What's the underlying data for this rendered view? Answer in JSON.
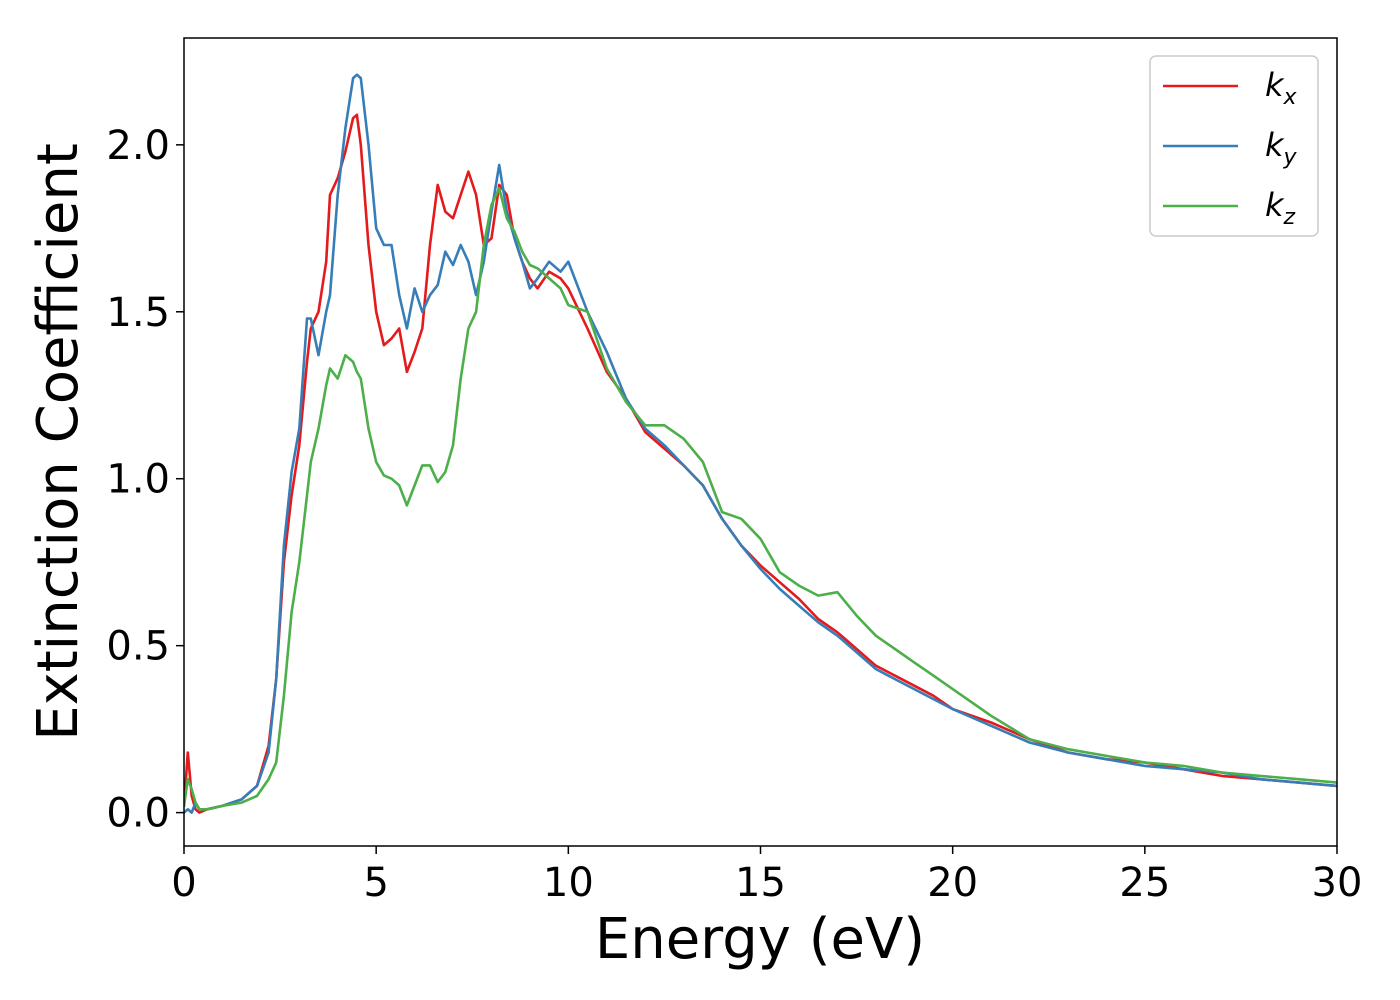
{
  "chart_data": {
    "type": "line",
    "title": "",
    "xlabel": "Energy (eV)",
    "ylabel": "Extinction Coefficient",
    "xlim": [
      0,
      30
    ],
    "ylim": [
      -0.1,
      2.32
    ],
    "xticks": [
      0,
      5,
      10,
      15,
      20,
      25,
      30
    ],
    "xtick_labels": [
      "0",
      "5",
      "10",
      "15",
      "20",
      "25",
      "30"
    ],
    "yticks": [
      0.0,
      0.5,
      1.0,
      1.5,
      2.0
    ],
    "ytick_labels": [
      "0.0",
      "0.5",
      "1.0",
      "1.5",
      "2.0"
    ],
    "grid": false,
    "legend_position": "top-right",
    "series": [
      {
        "name": "k",
        "subscript": "x",
        "color": "#e41a1c",
        "x": [
          0,
          0.1,
          0.2,
          0.3,
          0.4,
          0.6,
          1.0,
          1.5,
          1.9,
          2.2,
          2.4,
          2.6,
          2.8,
          3.0,
          3.2,
          3.3,
          3.5,
          3.7,
          3.8,
          4.0,
          4.2,
          4.4,
          4.5,
          4.6,
          4.8,
          5.0,
          5.2,
          5.4,
          5.6,
          5.8,
          6.0,
          6.2,
          6.4,
          6.6,
          6.8,
          7.0,
          7.2,
          7.4,
          7.6,
          7.8,
          8.0,
          8.2,
          8.4,
          8.6,
          8.8,
          9.0,
          9.2,
          9.5,
          9.8,
          10.0,
          10.5,
          11.0,
          11.5,
          12.0,
          12.5,
          13.0,
          13.5,
          14.0,
          14.5,
          15.0,
          15.5,
          16.0,
          16.5,
          17.0,
          17.5,
          18.0,
          18.5,
          19.0,
          19.5,
          20.0,
          21.0,
          22.0,
          23.0,
          24.0,
          25.0,
          26.0,
          27.0,
          28.0,
          29.0,
          30.0
        ],
        "y": [
          0.02,
          0.18,
          0.05,
          0.01,
          0.0,
          0.01,
          0.02,
          0.04,
          0.08,
          0.2,
          0.4,
          0.75,
          0.95,
          1.1,
          1.35,
          1.45,
          1.5,
          1.65,
          1.85,
          1.9,
          1.98,
          2.08,
          2.09,
          2.0,
          1.7,
          1.5,
          1.4,
          1.42,
          1.45,
          1.32,
          1.38,
          1.45,
          1.7,
          1.88,
          1.8,
          1.78,
          1.85,
          1.92,
          1.85,
          1.7,
          1.72,
          1.88,
          1.85,
          1.72,
          1.65,
          1.6,
          1.57,
          1.62,
          1.6,
          1.57,
          1.45,
          1.32,
          1.24,
          1.14,
          1.09,
          1.04,
          0.98,
          0.88,
          0.8,
          0.74,
          0.69,
          0.64,
          0.58,
          0.54,
          0.49,
          0.44,
          0.41,
          0.38,
          0.35,
          0.31,
          0.27,
          0.22,
          0.18,
          0.16,
          0.15,
          0.13,
          0.11,
          0.1,
          0.09,
          0.08
        ]
      },
      {
        "name": "k",
        "subscript": "y",
        "color": "#377eb8",
        "x": [
          0,
          0.1,
          0.2,
          0.3,
          0.4,
          0.6,
          1.0,
          1.5,
          1.9,
          2.2,
          2.4,
          2.6,
          2.8,
          3.0,
          3.2,
          3.3,
          3.5,
          3.7,
          3.8,
          4.0,
          4.2,
          4.4,
          4.5,
          4.6,
          4.8,
          5.0,
          5.2,
          5.4,
          5.6,
          5.8,
          6.0,
          6.2,
          6.4,
          6.6,
          6.8,
          7.0,
          7.2,
          7.4,
          7.6,
          7.8,
          8.0,
          8.2,
          8.4,
          8.6,
          8.8,
          9.0,
          9.2,
          9.5,
          9.8,
          10.0,
          10.5,
          11.0,
          11.5,
          12.0,
          12.5,
          13.0,
          13.5,
          14.0,
          14.5,
          15.0,
          15.5,
          16.0,
          16.5,
          17.0,
          17.5,
          18.0,
          18.5,
          19.0,
          19.5,
          20.0,
          21.0,
          22.0,
          23.0,
          24.0,
          25.0,
          26.0,
          27.0,
          28.0,
          29.0,
          30.0
        ],
        "y": [
          0.0,
          0.01,
          0.0,
          0.03,
          0.01,
          0.01,
          0.02,
          0.04,
          0.08,
          0.18,
          0.4,
          0.8,
          1.02,
          1.15,
          1.48,
          1.48,
          1.37,
          1.5,
          1.55,
          1.85,
          2.05,
          2.2,
          2.21,
          2.2,
          2.0,
          1.75,
          1.7,
          1.7,
          1.55,
          1.45,
          1.57,
          1.5,
          1.55,
          1.58,
          1.68,
          1.64,
          1.7,
          1.65,
          1.55,
          1.65,
          1.8,
          1.94,
          1.8,
          1.72,
          1.65,
          1.57,
          1.6,
          1.65,
          1.62,
          1.65,
          1.5,
          1.38,
          1.24,
          1.15,
          1.1,
          1.04,
          0.98,
          0.88,
          0.8,
          0.73,
          0.67,
          0.62,
          0.57,
          0.53,
          0.48,
          0.43,
          0.4,
          0.37,
          0.34,
          0.31,
          0.26,
          0.21,
          0.18,
          0.16,
          0.14,
          0.13,
          0.12,
          0.1,
          0.09,
          0.08
        ]
      },
      {
        "name": "k",
        "subscript": "z",
        "color": "#4daf4a",
        "x": [
          0,
          0.1,
          0.2,
          0.3,
          0.4,
          0.6,
          1.0,
          1.5,
          1.9,
          2.2,
          2.4,
          2.6,
          2.8,
          3.0,
          3.2,
          3.3,
          3.5,
          3.7,
          3.8,
          4.0,
          4.2,
          4.4,
          4.5,
          4.6,
          4.8,
          5.0,
          5.2,
          5.4,
          5.6,
          5.8,
          6.0,
          6.2,
          6.4,
          6.6,
          6.8,
          7.0,
          7.2,
          7.4,
          7.6,
          7.8,
          8.0,
          8.2,
          8.4,
          8.6,
          8.8,
          9.0,
          9.2,
          9.5,
          9.8,
          10.0,
          10.5,
          11.0,
          11.5,
          12.0,
          12.5,
          13.0,
          13.5,
          14.0,
          14.5,
          15.0,
          15.5,
          16.0,
          16.5,
          17.0,
          17.5,
          18.0,
          18.5,
          19.0,
          19.5,
          20.0,
          21.0,
          22.0,
          23.0,
          24.0,
          25.0,
          26.0,
          27.0,
          28.0,
          29.0,
          30.0
        ],
        "y": [
          0.02,
          0.1,
          0.07,
          0.03,
          0.01,
          0.01,
          0.02,
          0.03,
          0.05,
          0.1,
          0.15,
          0.35,
          0.6,
          0.75,
          0.95,
          1.05,
          1.15,
          1.28,
          1.33,
          1.3,
          1.37,
          1.35,
          1.32,
          1.3,
          1.15,
          1.05,
          1.01,
          1.0,
          0.98,
          0.92,
          0.98,
          1.04,
          1.04,
          0.99,
          1.02,
          1.1,
          1.3,
          1.45,
          1.5,
          1.7,
          1.82,
          1.87,
          1.78,
          1.74,
          1.68,
          1.64,
          1.63,
          1.6,
          1.57,
          1.52,
          1.5,
          1.33,
          1.23,
          1.16,
          1.16,
          1.12,
          1.05,
          0.9,
          0.88,
          0.82,
          0.72,
          0.68,
          0.65,
          0.66,
          0.59,
          0.53,
          0.49,
          0.45,
          0.41,
          0.37,
          0.29,
          0.22,
          0.19,
          0.17,
          0.15,
          0.14,
          0.12,
          0.11,
          0.1,
          0.09
        ]
      }
    ]
  }
}
